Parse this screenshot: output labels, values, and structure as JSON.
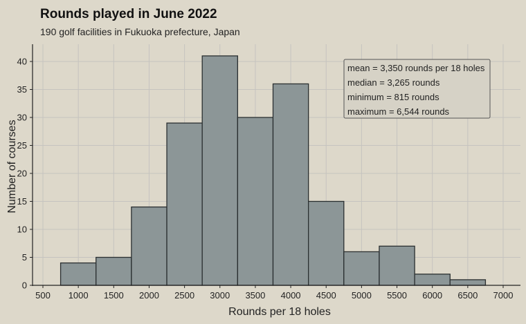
{
  "chart_data": {
    "type": "bar",
    "title": "Rounds played in June 2022",
    "subtitle": "190 golf facilities in Fukuoka prefecture, Japan",
    "xlabel": "Rounds per 18 holes",
    "ylabel": "Number of courses",
    "xlim": [
      500,
      7000
    ],
    "ylim": [
      0,
      42
    ],
    "x_ticks": [
      500,
      1000,
      1500,
      2000,
      2500,
      3000,
      3500,
      4000,
      4500,
      5000,
      5500,
      6000,
      6500,
      7000
    ],
    "y_ticks": [
      0,
      5,
      10,
      15,
      20,
      25,
      30,
      35,
      40
    ],
    "grid": true,
    "bins": [
      {
        "start": 750,
        "end": 1250,
        "count": 4
      },
      {
        "start": 1250,
        "end": 1750,
        "count": 5
      },
      {
        "start": 1750,
        "end": 2250,
        "count": 14
      },
      {
        "start": 2250,
        "end": 2750,
        "count": 29
      },
      {
        "start": 2750,
        "end": 3250,
        "count": 41
      },
      {
        "start": 3250,
        "end": 3750,
        "count": 30
      },
      {
        "start": 3750,
        "end": 4250,
        "count": 36
      },
      {
        "start": 4250,
        "end": 4750,
        "count": 15
      },
      {
        "start": 4750,
        "end": 5250,
        "count": 6
      },
      {
        "start": 5250,
        "end": 5750,
        "count": 7
      },
      {
        "start": 5750,
        "end": 6250,
        "count": 2
      },
      {
        "start": 6250,
        "end": 6750,
        "count": 1
      }
    ],
    "annotation": {
      "placement": "top-right",
      "lines": [
        "mean = 3,350 rounds per 18 holes",
        "median = 3,265 rounds",
        "minimum = 815 rounds",
        "maximum = 6,544 rounds"
      ]
    }
  },
  "colors": {
    "background": "#ddd8ca",
    "bar_fill": "#8c9697",
    "bar_stroke": "#2a2f30",
    "grid": "#c5c3bf"
  }
}
